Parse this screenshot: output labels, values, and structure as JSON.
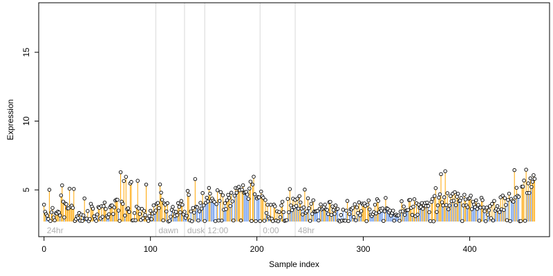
{
  "chart_data": {
    "type": "scatter",
    "title": "",
    "xlabel": "Sample index",
    "ylabel": "Expression",
    "xlim": [
      -5,
      475
    ],
    "ylim": [
      1.6,
      18.6
    ],
    "xticks": [
      0,
      100,
      200,
      300,
      400
    ],
    "yticks": [
      5,
      10,
      15
    ],
    "baseline": 2.7,
    "grid": false,
    "legend": "none",
    "colors": {
      "high_stem": "#ffa500",
      "low_stem": "#6495ed",
      "point_stroke": "#000000",
      "point_fill": "#ffffff",
      "divider": "#d8d8d8",
      "group_label": "#b0b0b0"
    },
    "groups": [
      {
        "label": "24hr",
        "x": 0
      },
      {
        "label": "dawn",
        "x": 105
      },
      {
        "label": "dusk",
        "x": 132
      },
      {
        "label": "12:00",
        "x": 151
      },
      {
        "label": "0:00",
        "x": 203
      },
      {
        "label": "48hr",
        "x": 236
      }
    ],
    "anchors": [
      [
        0,
        3.4
      ],
      [
        10,
        3.1
      ],
      [
        20,
        3.6
      ],
      [
        30,
        3.0
      ],
      [
        45,
        3.4
      ],
      [
        60,
        3.6
      ],
      [
        70,
        3.8
      ],
      [
        80,
        3.3
      ],
      [
        95,
        3.0
      ],
      [
        110,
        3.8
      ],
      [
        125,
        3.6
      ],
      [
        140,
        3.6
      ],
      [
        150,
        4.4
      ],
      [
        160,
        4.6
      ],
      [
        170,
        4.1
      ],
      [
        180,
        4.8
      ],
      [
        190,
        5.0
      ],
      [
        200,
        4.9
      ],
      [
        210,
        3.5
      ],
      [
        220,
        3.3
      ],
      [
        235,
        4.1
      ],
      [
        245,
        3.8
      ],
      [
        260,
        3.7
      ],
      [
        280,
        3.7
      ],
      [
        300,
        3.6
      ],
      [
        320,
        3.8
      ],
      [
        340,
        3.6
      ],
      [
        360,
        3.9
      ],
      [
        380,
        4.2
      ],
      [
        400,
        4.3
      ],
      [
        420,
        3.5
      ],
      [
        440,
        4.5
      ],
      [
        450,
        5.0
      ],
      [
        461,
        5.5
      ]
    ],
    "n_points": 462
  }
}
